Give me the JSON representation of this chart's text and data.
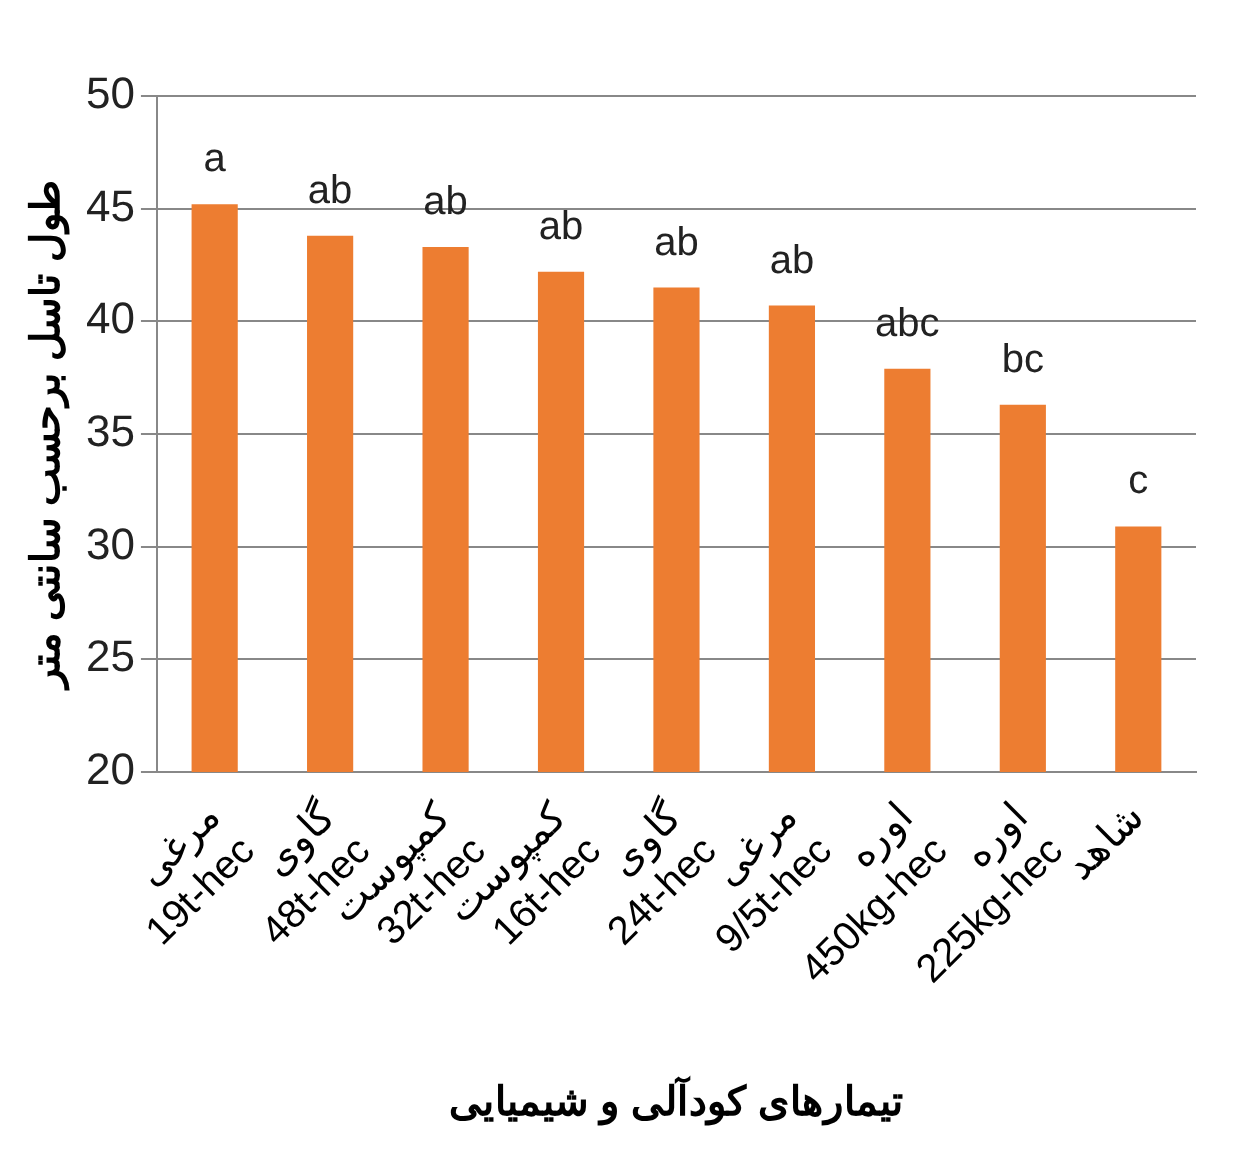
{
  "chart_data": {
    "type": "bar",
    "xlabel": "تیمارهای کودآلی و شیمیایی",
    "ylabel": "طول تاسل برحسب سانتی متر",
    "categories": [
      "مرغی\n19t-hec",
      "گاوی\n48t-hec",
      "کمپوست\n32t-hec",
      "کمپوست\n16t-hec",
      "گاوی\n24t-hec",
      "مرغی\n9/5t-hec",
      "اوره\n450kg-hec",
      "اوره\n225kg-hec",
      "شاهد"
    ],
    "values": [
      45.2,
      43.8,
      43.3,
      42.2,
      41.5,
      40.7,
      37.9,
      36.3,
      30.9
    ],
    "color": "#ed7d31",
    "ylim": [
      20,
      50
    ],
    "yticks": [
      20,
      25,
      30,
      35,
      40,
      45,
      50
    ],
    "grid": "y",
    "annotations": [
      {
        "text": "a",
        "x": "مرغی\n19t-hec",
        "y": 45.2
      },
      {
        "text": "ab",
        "x": "گاوی\n48t-hec",
        "y": 43.8
      },
      {
        "text": "ab",
        "x": "کمپوست\n32t-hec",
        "y": 43.3
      },
      {
        "text": "ab",
        "x": "کمپوست\n16t-hec",
        "y": 42.2
      },
      {
        "text": "ab",
        "x": "گاوی\n24t-hec",
        "y": 41.5
      },
      {
        "text": "ab",
        "x": "مرغی\n9/5t-hec",
        "y": 40.7
      },
      {
        "text": "abc",
        "x": "اوره\n450kg-hec",
        "y": 37.9
      },
      {
        "text": "bc",
        "x": "اوره\n225kg-hec",
        "y": 36.3
      },
      {
        "text": "c",
        "x": "شاهد",
        "y": 30.9
      }
    ]
  }
}
